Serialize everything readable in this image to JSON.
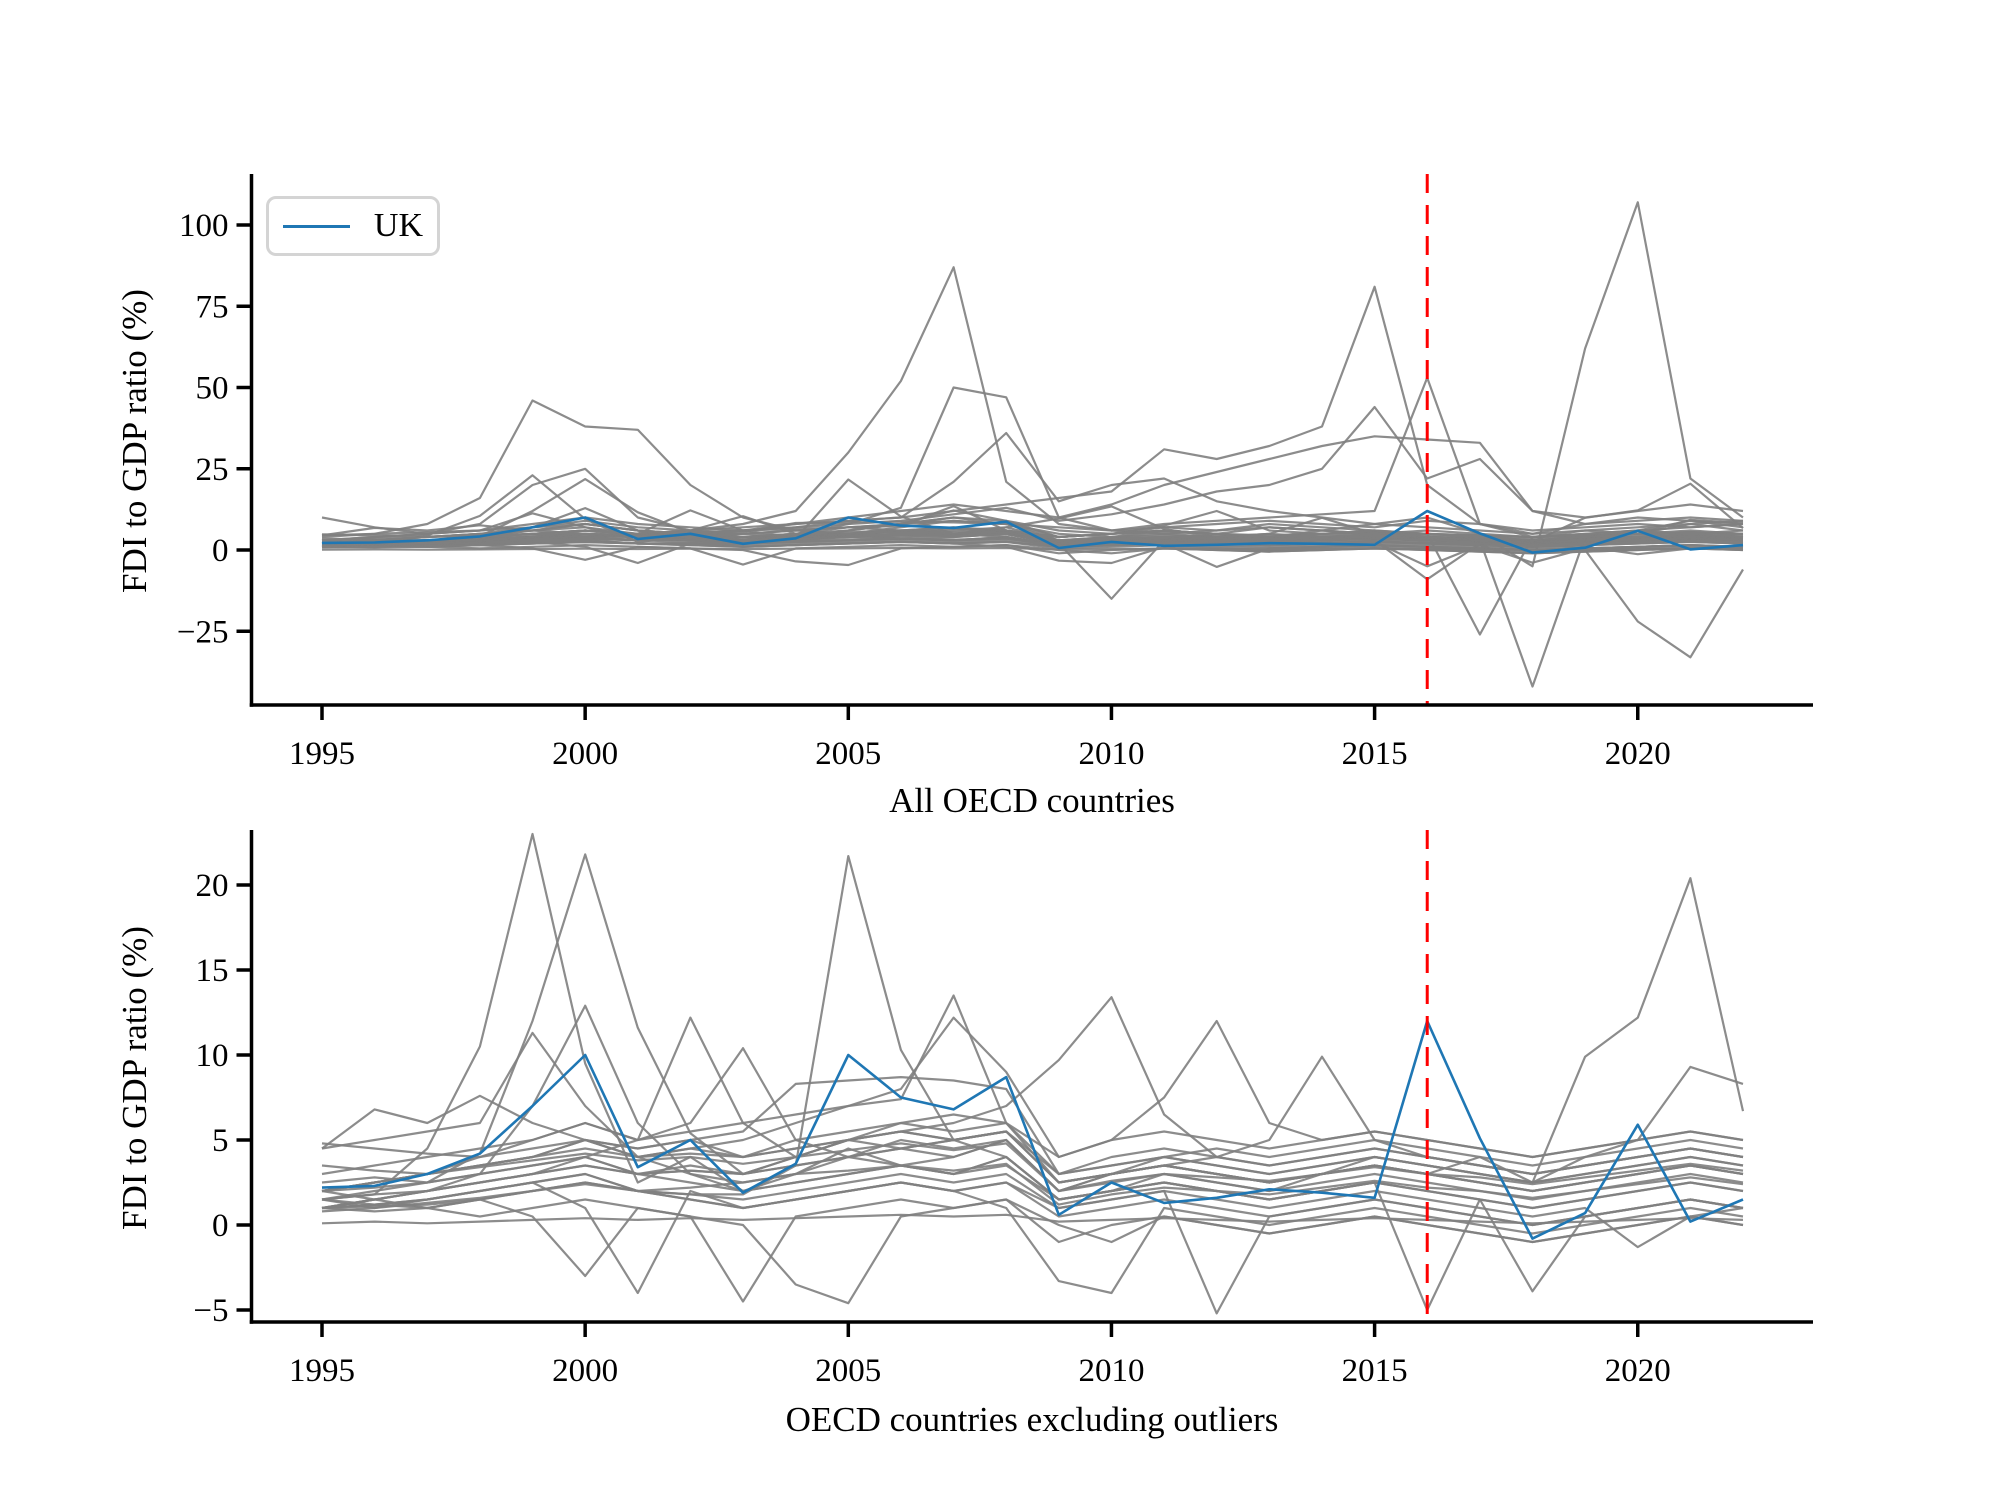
{
  "figure": {
    "top_panel_xlabel": "All OECD countries",
    "bottom_panel_xlabel": "OECD countries excluding outliers",
    "ylabel": "FDI to GDP ratio (%)",
    "legend": {
      "entries": [
        {
          "label": "UK",
          "color": "#1f77b4"
        }
      ],
      "position": "upper left"
    }
  },
  "colors": {
    "uk_line": "#1f77b4",
    "country_line": "#808080",
    "event_vline": "#ff0000",
    "axis": "#000000",
    "legend_border": "#d4d4d4"
  },
  "chart_data": {
    "type": "line",
    "x": [
      1995,
      1996,
      1997,
      1998,
      1999,
      2000,
      2001,
      2002,
      2003,
      2004,
      2005,
      2006,
      2007,
      2008,
      2009,
      2010,
      2011,
      2012,
      2013,
      2014,
      2015,
      2016,
      2017,
      2018,
      2019,
      2020,
      2021,
      2022
    ],
    "xtick_labels": [
      "1995",
      "2000",
      "2005",
      "2010",
      "2015",
      "2020"
    ],
    "xtick_values": [
      1995,
      2000,
      2005,
      2010,
      2015,
      2020
    ],
    "vline_year": 2016,
    "uk_series": {
      "name": "UK",
      "values": [
        2.2,
        2.3,
        3.0,
        4.2,
        7.0,
        10.0,
        3.4,
        5.0,
        1.9,
        3.6,
        10.0,
        7.5,
        6.8,
        8.7,
        0.6,
        2.5,
        1.3,
        1.6,
        2.1,
        1.9,
        1.6,
        12.0,
        5.1,
        -0.8,
        0.7,
        5.9,
        0.2,
        1.5
      ]
    },
    "gray_series_both_panels": [
      [
        1.5,
        1.8,
        4.5,
        10.5,
        23,
        9.5,
        2.5,
        4,
        2,
        3,
        4.5,
        3.5,
        3,
        4,
        1.5,
        2,
        3,
        2.5,
        2,
        3,
        3.5,
        3,
        2.5,
        2,
        2.5,
        3,
        3.5,
        3
      ],
      [
        2.5,
        2.8,
        2.5,
        4.2,
        12,
        21.8,
        11.6,
        5.4,
        3,
        4,
        5,
        4.5,
        4,
        5,
        2,
        3,
        3.5,
        3,
        2.5,
        3,
        4,
        3.5,
        3,
        2.5,
        3,
        3.5,
        4,
        3.5
      ],
      [
        1,
        1.5,
        2,
        3,
        7,
        12.9,
        6,
        3,
        2,
        2.5,
        3,
        3.5,
        3,
        4,
        1.5,
        2,
        2.5,
        2,
        1.5,
        2,
        2.5,
        2,
        1.5,
        1,
        1.5,
        2,
        2.5,
        2
      ],
      [
        4.5,
        5,
        5.5,
        6,
        11.3,
        7,
        4,
        3,
        2.5,
        3,
        4,
        5,
        4.5,
        5,
        2,
        3,
        3.5,
        3,
        2.5,
        3,
        3.5,
        3,
        2.5,
        2,
        2.5,
        3,
        3.5,
        3
      ],
      [
        2,
        2.5,
        3,
        4,
        5,
        6,
        5,
        12.2,
        6,
        4,
        5,
        6,
        5.5,
        6,
        2.5,
        3,
        4,
        3.5,
        3,
        3.5,
        4,
        3.5,
        3,
        2.5,
        3,
        3.5,
        4,
        3.5
      ],
      [
        1,
        1.5,
        2,
        2.5,
        3,
        4,
        5,
        6,
        10.4,
        5,
        4,
        3.5,
        4,
        5,
        2,
        2.5,
        3,
        2.5,
        2,
        2.5,
        3,
        2.5,
        2,
        1.5,
        2,
        2.5,
        3,
        2.5
      ],
      [
        1,
        1.2,
        1.5,
        2,
        2.5,
        3,
        2,
        1.8,
        1.8,
        3.5,
        21.7,
        10.3,
        5,
        4,
        1.5,
        2,
        2.5,
        2,
        1.5,
        2,
        2.5,
        2,
        1.5,
        1,
        1.5,
        2,
        2.5,
        2
      ],
      [
        2,
        2.5,
        3,
        3.5,
        4,
        5,
        4,
        4.5,
        5,
        6,
        7,
        7.4,
        13.5,
        6,
        3,
        4,
        4.5,
        4,
        3.5,
        4,
        4.5,
        4,
        3.5,
        3,
        3.5,
        4,
        4.5,
        4
      ],
      [
        3,
        3.5,
        4,
        4.5,
        5,
        6,
        5,
        5.5,
        6,
        6.5,
        7,
        8,
        12.2,
        9,
        4,
        5,
        5.5,
        5,
        4.5,
        5,
        5.5,
        5,
        4.5,
        4,
        4.5,
        5,
        5.5,
        5
      ],
      [
        1.5,
        2,
        2.5,
        3,
        3.5,
        4,
        3,
        3.5,
        3,
        4,
        5,
        5.5,
        6,
        7,
        9.7,
        13.4,
        6.5,
        4,
        3.5,
        4,
        4.5,
        4,
        3.5,
        3,
        3.5,
        4,
        4.5,
        4
      ],
      [
        2,
        2.5,
        3,
        3.5,
        4,
        5,
        4,
        4.5,
        4,
        5,
        5.5,
        6,
        6.5,
        6,
        4,
        5,
        7.5,
        12,
        6,
        5,
        5.5,
        5,
        4.5,
        4,
        4.5,
        5,
        5.5,
        5
      ],
      [
        1.5,
        1.8,
        2,
        2.5,
        3,
        3.5,
        3,
        3.2,
        3,
        3.5,
        4,
        4.5,
        5,
        5.5,
        2.5,
        3,
        3.5,
        4,
        5,
        9.9,
        5,
        4,
        3.5,
        3,
        3.5,
        4,
        4.5,
        4
      ],
      [
        1,
        1.5,
        2,
        2.5,
        3,
        3.5,
        3,
        3.2,
        3,
        3.5,
        4,
        4.5,
        5,
        5.5,
        2.5,
        3,
        3.5,
        3,
        2.5,
        3,
        3.5,
        3,
        4,
        2.5,
        9.9,
        12.2,
        20.4,
        6.7
      ],
      [
        2,
        2.5,
        3,
        3.5,
        4,
        4.5,
        4,
        4.2,
        4,
        4.5,
        5,
        5.5,
        5,
        5.5,
        3,
        3.5,
        4,
        3.5,
        3,
        3.5,
        4,
        3.5,
        3,
        2.5,
        4,
        5,
        9.3,
        8.3
      ],
      [
        1.5,
        1,
        1.5,
        2,
        2.5,
        1,
        -4,
        2,
        1,
        1.5,
        2,
        2.5,
        2,
        2.5,
        0.5,
        1,
        1.5,
        1,
        0.5,
        1,
        1.5,
        1,
        0.5,
        0,
        0.5,
        1,
        1.5,
        1
      ],
      [
        1,
        0.8,
        1,
        1.5,
        0.5,
        -3,
        1,
        0.5,
        -4.5,
        0.5,
        1,
        1.5,
        1,
        1.5,
        0,
        -1,
        0.5,
        0,
        -0.5,
        0,
        0.5,
        0,
        -0.5,
        -1,
        -0.5,
        0,
        0.5,
        0
      ],
      [
        2,
        1.5,
        1,
        0.5,
        1,
        1.5,
        1,
        0.5,
        0,
        -3.5,
        -4.6,
        0.5,
        1,
        1.5,
        -1,
        0,
        0.5,
        0,
        -0.5,
        0,
        0.5,
        0,
        -0.5,
        -1,
        -0.5,
        0,
        0.5,
        0
      ],
      [
        1.5,
        1.2,
        1,
        1.5,
        2,
        2.5,
        2,
        1.5,
        1,
        1.5,
        2,
        2.5,
        2,
        1,
        -3.3,
        -4,
        1,
        0.5,
        0,
        0.5,
        1,
        0.5,
        0,
        -0.5,
        0,
        0.5,
        1,
        0.5
      ],
      [
        1,
        1.2,
        1.5,
        2,
        2.5,
        3,
        2,
        1.5,
        1,
        1.5,
        2,
        2.5,
        2,
        2.5,
        1,
        1.5,
        2,
        -5.2,
        0.5,
        1,
        1.5,
        1,
        0.5,
        0,
        0.5,
        1,
        1.5,
        1
      ],
      [
        2,
        2.2,
        2.5,
        3,
        3.5,
        4,
        3,
        2.5,
        2,
        2.5,
        3,
        3.5,
        3,
        3.5,
        1.5,
        2,
        2.5,
        2,
        1.5,
        2,
        2.5,
        -5,
        1.5,
        -3.9,
        0.5,
        1,
        1.5,
        1
      ],
      [
        1,
        1.1,
        1.2,
        1.5,
        2,
        2.5,
        2,
        1.8,
        1.5,
        2,
        2.5,
        3,
        2.5,
        3,
        1,
        1.5,
        2,
        1.5,
        1,
        1.5,
        2,
        1.5,
        1,
        0.5,
        1,
        -1.3,
        0.5,
        1
      ],
      [
        4.8,
        4.5,
        4.2,
        4,
        4.5,
        5,
        4.5,
        5,
        5.5,
        8.3,
        8.5,
        8.7,
        8.5,
        8,
        3,
        3.5,
        4,
        4.5,
        4,
        4.5,
        5,
        4.5,
        4,
        3.5,
        4,
        4.5,
        5,
        4.5
      ],
      [
        4.5,
        6.8,
        6,
        7.6,
        6,
        5,
        4.5,
        5,
        4,
        4.5,
        5,
        5.5,
        5,
        5.5,
        2.5,
        3,
        3.5,
        3,
        2.5,
        3,
        3.5,
        3,
        2.5,
        2,
        2.5,
        3,
        3.5,
        3
      ],
      [
        0.1,
        0.2,
        0.1,
        0.2,
        0.3,
        0.4,
        0.3,
        0.4,
        0.3,
        0.4,
        0.5,
        0.6,
        0.5,
        0.6,
        0.2,
        0.3,
        0.4,
        0.3,
        0.2,
        0.3,
        0.4,
        0.3,
        0.2,
        0.1,
        0.2,
        0.3,
        0.4,
        0.3
      ],
      [
        0.8,
        1,
        1.3,
        1.6,
        2,
        2.4,
        2,
        2.2,
        2.5,
        3,
        3.2,
        3.5,
        3.2,
        3.6,
        1.2,
        1.8,
        2.2,
        2,
        1.8,
        2.2,
        2.6,
        2.2,
        2,
        1.6,
        2,
        2.4,
        2.8,
        2.4
      ],
      [
        3.5,
        3.2,
        3,
        3.4,
        3.8,
        4.2,
        3.8,
        4,
        3.6,
        4,
        4.4,
        4.8,
        4.4,
        4.8,
        2,
        2.6,
        3,
        2.8,
        2.6,
        3,
        3.4,
        3,
        2.8,
        2.4,
        2.8,
        3.2,
        3.6,
        3.2
      ]
    ],
    "gray_series_top_only": [
      [
        4,
        5,
        8,
        16,
        46,
        38,
        37,
        20,
        10,
        6,
        5,
        4,
        5,
        6,
        4,
        5,
        6,
        5,
        4,
        5,
        6,
        5,
        4,
        3,
        4,
        5,
        6,
        5
      ],
      [
        10,
        7,
        5,
        8,
        20,
        25,
        10,
        6,
        4,
        5,
        7,
        6,
        5,
        7,
        3,
        4,
        5,
        4,
        3,
        4,
        5,
        4,
        3,
        2,
        3,
        4,
        5,
        4
      ],
      [
        2,
        2,
        3,
        3,
        4,
        5,
        4,
        6,
        8,
        12,
        30,
        52,
        87,
        21,
        8,
        6,
        7,
        8,
        9,
        8,
        7,
        9,
        8,
        6,
        7,
        8,
        7,
        8
      ],
      [
        1,
        2,
        2,
        3,
        4,
        6,
        5,
        4,
        3,
        5,
        8,
        13,
        50,
        47,
        10,
        6,
        5,
        6,
        7,
        6,
        5,
        6,
        5,
        4,
        5,
        6,
        5,
        6
      ],
      [
        3,
        4,
        5,
        6,
        7,
        8,
        6,
        5,
        6,
        7,
        9,
        10,
        21,
        36,
        15,
        20,
        22,
        15,
        12,
        10,
        8,
        7,
        6,
        5,
        8,
        10,
        9,
        8
      ],
      [
        2,
        3,
        4,
        5,
        6,
        7,
        5,
        6,
        7,
        8,
        9,
        10,
        12,
        14,
        16,
        18,
        31,
        28,
        32,
        38,
        81,
        20,
        8,
        5,
        6,
        7,
        8,
        9
      ],
      [
        1,
        2,
        3,
        4,
        5,
        4,
        3,
        4,
        5,
        6,
        7,
        8,
        9,
        8,
        7,
        6,
        8,
        9,
        10,
        11,
        12,
        53,
        8,
        4,
        5,
        6,
        7,
        8
      ],
      [
        3,
        4,
        5,
        6,
        8,
        10,
        8,
        7,
        6,
        8,
        10,
        12,
        14,
        12,
        10,
        14,
        20,
        24,
        28,
        32,
        35,
        34,
        33,
        12,
        10,
        12,
        14,
        12
      ],
      [
        2,
        3,
        3,
        4,
        5,
        6,
        4,
        3,
        4,
        5,
        6,
        8,
        10,
        8,
        4,
        5,
        6,
        5,
        4,
        6,
        8,
        10,
        5,
        -5,
        62,
        107,
        22,
        10
      ],
      [
        3,
        2,
        3,
        4,
        6,
        8,
        6,
        5,
        4,
        3,
        5,
        7,
        9,
        8,
        5,
        4,
        6,
        5,
        7,
        6,
        5,
        5,
        -26,
        4,
        6,
        5,
        8,
        6
      ],
      [
        2,
        3,
        4,
        5,
        7,
        9,
        7,
        6,
        5,
        4,
        6,
        8,
        10,
        9,
        6,
        5,
        7,
        6,
        8,
        7,
        6,
        4,
        3,
        -42,
        4,
        6,
        9,
        7
      ],
      [
        1,
        2,
        3,
        4,
        5,
        6,
        5,
        4,
        3,
        4,
        5,
        6,
        7,
        6,
        4,
        5,
        6,
        5,
        4,
        5,
        6,
        5,
        4,
        3,
        0,
        -22,
        -33,
        -6
      ],
      [
        2,
        2,
        3,
        3,
        4,
        5,
        4,
        3,
        3,
        4,
        5,
        6,
        7,
        5,
        2,
        -15,
        3,
        4,
        5,
        4,
        3,
        -9,
        2,
        3,
        4,
        5,
        4,
        5
      ],
      [
        2,
        3,
        4,
        5,
        6,
        8,
        6,
        5,
        6,
        7,
        8,
        9,
        11,
        13,
        9,
        11,
        14,
        18,
        20,
        25,
        44,
        22,
        28,
        12,
        8,
        9,
        10,
        9
      ]
    ],
    "panels": [
      {
        "xlabel": "All OECD countries",
        "ylabel": "FDI to GDP ratio (%)",
        "ytick_labels": [
          "100",
          "75",
          "50",
          "25",
          "0",
          "−25"
        ],
        "ytick_values": [
          100,
          75,
          50,
          25,
          0,
          -25
        ],
        "ylim": [
          -47.7,
          114.5
        ],
        "series_included": "uk + gray_series_both_panels + gray_series_top_only",
        "grid": false
      },
      {
        "xlabel": "OECD countries excluding outliers",
        "ylabel": "FDI to GDP ratio (%)",
        "ytick_labels": [
          "20",
          "15",
          "10",
          "5",
          "0",
          "−5"
        ],
        "ytick_values": [
          20,
          15,
          10,
          5,
          0,
          -5
        ],
        "ylim": [
          -5.7,
          23.0
        ],
        "series_included": "uk + gray_series_both_panels",
        "grid": false
      }
    ]
  }
}
